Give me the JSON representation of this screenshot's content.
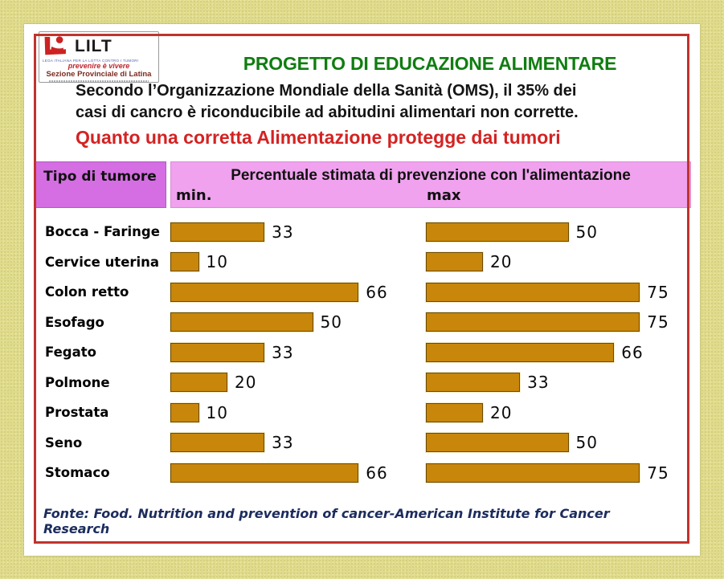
{
  "logo": {
    "name": "LILT",
    "org_line": "LEGA ITALIANA PER LA LOTTA CONTRO I TUMORI",
    "tagline": "prevenire è vivere",
    "section": "Sezione Provinciale di Latina"
  },
  "header": {
    "title": "PROGETTO DI EDUCAZIONE ALIMENTARE"
  },
  "intro": {
    "lines": [
      "Secondo l’Organizzazione Mondiale della Sanità (OMS), il 35% dei",
      "casi di cancro è riconducibile ad abitudini alimentari non corrette."
    ]
  },
  "subtitle": "Quanto una corretta Alimentazione protegge dai tumori",
  "table": {
    "col1_header": "Tipo di tumore",
    "col2_header": "Percentuale stimata di prevenzione con l'alimentazione",
    "min_label": "min.",
    "max_label": "max"
  },
  "chart_data": {
    "type": "bar",
    "orientation": "horizontal",
    "title": "Percentuale stimata di prevenzione con l'alimentazione",
    "categories": [
      "Bocca - Faringe",
      "Cervice uterina",
      "Colon retto",
      "Esofago",
      "Fegato",
      "Polmone",
      "Prostata",
      "Seno",
      "Stomaco"
    ],
    "series": [
      {
        "name": "min",
        "values": [
          33,
          10,
          66,
          50,
          33,
          20,
          10,
          33,
          66
        ]
      },
      {
        "name": "max",
        "values": [
          50,
          20,
          75,
          75,
          66,
          33,
          20,
          50,
          75
        ]
      }
    ],
    "value_labels": true,
    "xlim": [
      0,
      80
    ],
    "grid": false,
    "bar_color": "#c8860b"
  },
  "footer": {
    "source": "Fonte: Food. Nutrition and prevention of cancer-American Institute for Cancer Research"
  },
  "colors": {
    "page_bg": "#dfdb8e",
    "frame_red": "#c1332c",
    "title_green": "#107d10",
    "accent_red": "#d42222",
    "header_left_bg": "#d46ee2",
    "header_right_bg": "#f0a2ee",
    "bar": "#c8860b",
    "footer_navy": "#1c2c5e"
  }
}
